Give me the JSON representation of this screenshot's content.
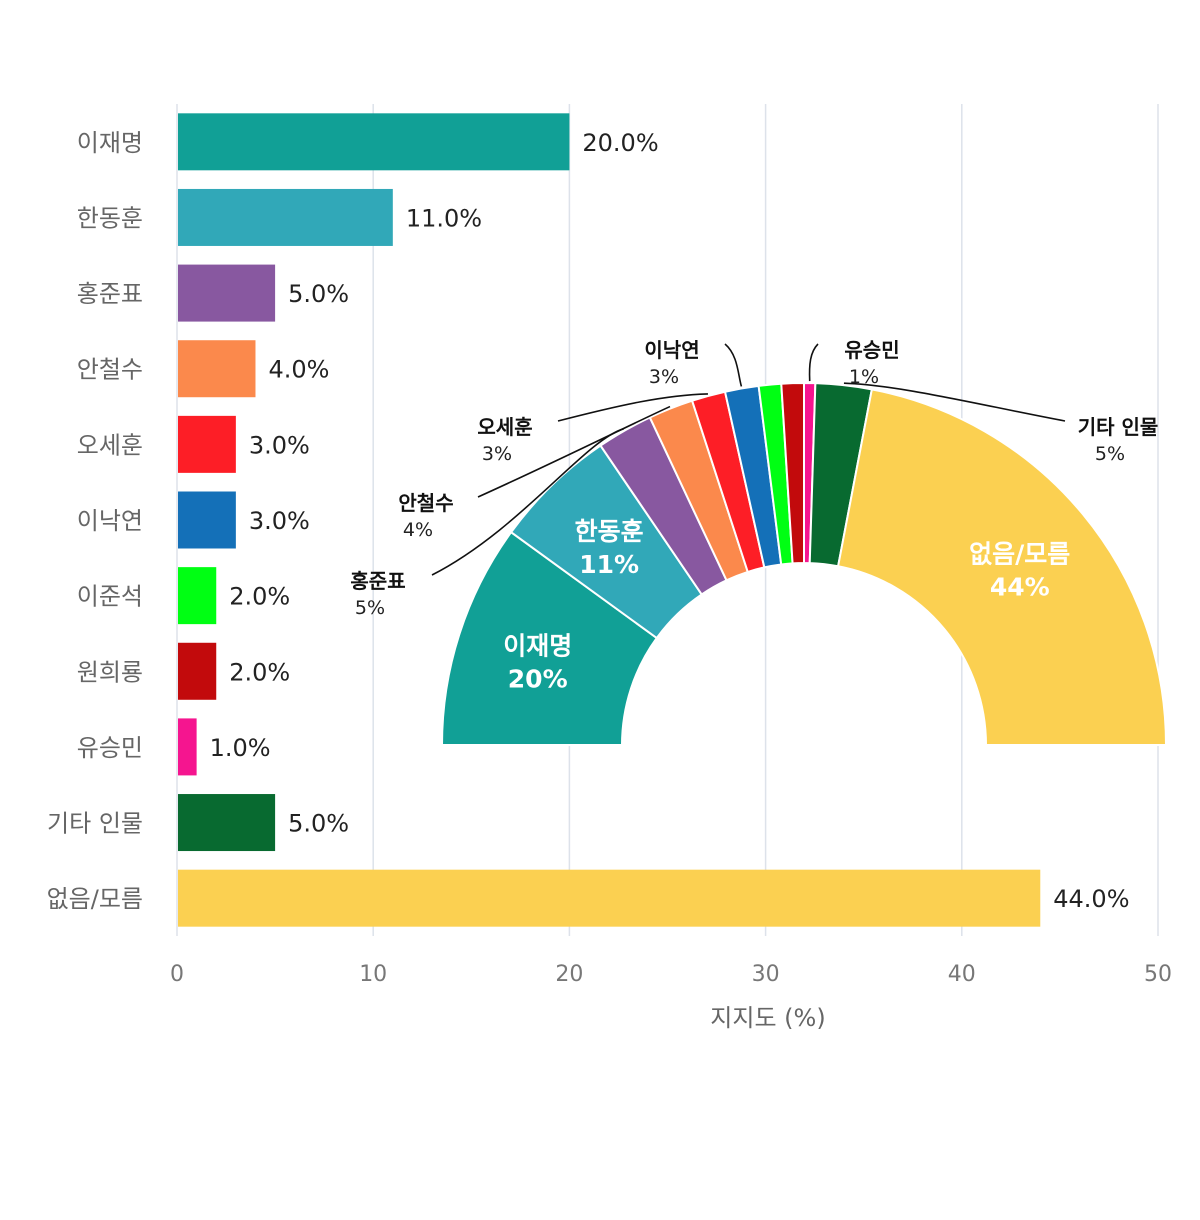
{
  "chart_data": [
    {
      "type": "bar",
      "orientation": "horizontal",
      "categories": [
        "이재명",
        "한동훈",
        "홍준표",
        "안철수",
        "오세훈",
        "이낙연",
        "이준석",
        "원희룡",
        "유승민",
        "기타 인물",
        "없음/모름"
      ],
      "values": [
        20.0,
        11.0,
        5.0,
        4.0,
        3.0,
        3.0,
        2.0,
        2.0,
        1.0,
        5.0,
        44.0
      ],
      "value_labels": [
        "20.0%",
        "11.0%",
        "5.0%",
        "4.0%",
        "3.0%",
        "3.0%",
        "2.0%",
        "2.0%",
        "1.0%",
        "5.0%",
        "44.0%"
      ],
      "colors": [
        "#11a096",
        "#31a8b8",
        "#8858a0",
        "#fb894c",
        "#fd1e26",
        "#1470b8",
        "#00ff13",
        "#c20a0c",
        "#f5158f",
        "#086a30",
        "#fbd051"
      ],
      "xlabel": "지지도 (%)",
      "xlim": [
        0,
        50
      ],
      "x_ticks": [
        0,
        10,
        20,
        30,
        40,
        50
      ],
      "x_tick_labels": [
        "0",
        "10",
        "20",
        "30",
        "40",
        "50"
      ],
      "grid": true
    },
    {
      "type": "pie",
      "style": "semicircle-donut",
      "labels": [
        "이재명",
        "한동훈",
        "홍준표",
        "안철수",
        "오세훈",
        "이낙연",
        "이준석",
        "원희룡",
        "유승민",
        "기타 인물",
        "없음/모름"
      ],
      "values": [
        20,
        11,
        5,
        4,
        3,
        3,
        2,
        2,
        1,
        5,
        44
      ],
      "value_labels": [
        "20%",
        "11%",
        "5%",
        "4%",
        "3%",
        "3%",
        "",
        "",
        "1%",
        "5%",
        "44%"
      ],
      "inside_labels": [
        "이재명",
        "한동훈",
        "없음/모름"
      ],
      "outside_labels": [
        "홍준표",
        "안철수",
        "오세훈",
        "이낙연",
        "유승민",
        "기타 인물"
      ],
      "colors": [
        "#11a096",
        "#31a8b8",
        "#8858a0",
        "#fb894c",
        "#fd1e26",
        "#1470b8",
        "#00ff13",
        "#c20a0c",
        "#f5158f",
        "#086a30",
        "#fbd051"
      ]
    }
  ]
}
